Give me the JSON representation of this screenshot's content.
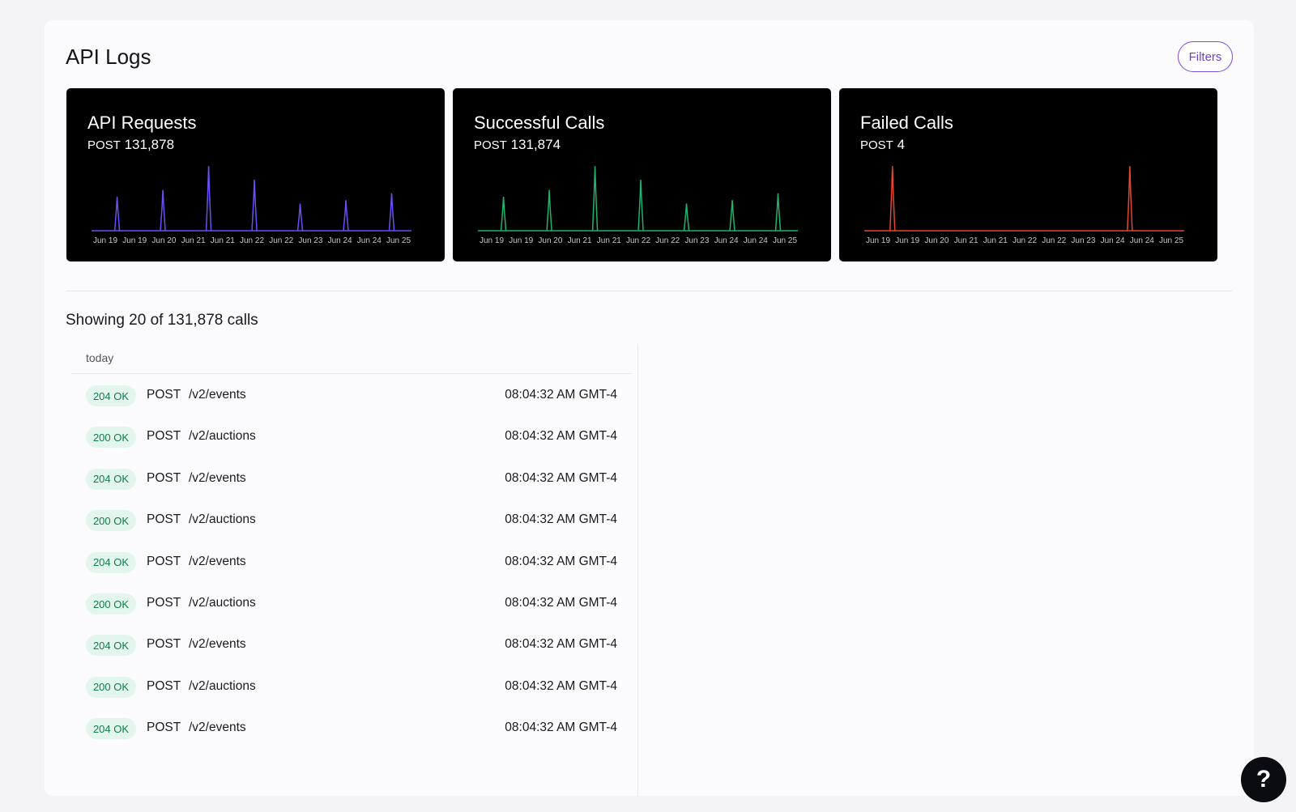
{
  "header": {
    "title": "API Logs",
    "filters_label": "Filters"
  },
  "cards": [
    {
      "title": "API Requests",
      "method": "POST",
      "count": "131,878",
      "color": "#6b4ef5",
      "x_labels": [
        "Jun 19",
        "Jun 19",
        "Jun 20",
        "Jun 21",
        "Jun 21",
        "Jun 22",
        "Jun 22",
        "Jun 23",
        "Jun 24",
        "Jun 24",
        "Jun 25"
      ],
      "spikes": [
        0.5,
        0.6,
        0.95,
        0.75,
        0.4,
        0.45,
        0.55
      ]
    },
    {
      "title": "Successful Calls",
      "method": "POST",
      "count": "131,874",
      "color": "#1fb36b",
      "x_labels": [
        "Jun 19",
        "Jun 19",
        "Jun 20",
        "Jun 21",
        "Jun 21",
        "Jun 22",
        "Jun 22",
        "Jun 23",
        "Jun 24",
        "Jun 24",
        "Jun 25"
      ],
      "spikes": [
        0.5,
        0.6,
        0.95,
        0.75,
        0.4,
        0.45,
        0.55
      ]
    },
    {
      "title": "Failed Calls",
      "method": "POST",
      "count": "4",
      "color": "#e4472e",
      "x_labels": [
        "Jun 19",
        "Jun 19",
        "Jun 20",
        "Jun 21",
        "Jun 21",
        "Jun 22",
        "Jun 22",
        "Jun 23",
        "Jun 24",
        "Jun 24",
        "Jun 25"
      ],
      "spikes": [
        0.95,
        0.95
      ]
    }
  ],
  "summary": {
    "showing_text": "Showing 20 of 131,878 calls"
  },
  "log_list": {
    "day_label": "today",
    "rows": [
      {
        "status": "204 OK",
        "method": "POST",
        "path": "/v2/events",
        "time": "08:04:32 AM GMT-4"
      },
      {
        "status": "200 OK",
        "method": "POST",
        "path": "/v2/auctions",
        "time": "08:04:32 AM GMT-4"
      },
      {
        "status": "204 OK",
        "method": "POST",
        "path": "/v2/events",
        "time": "08:04:32 AM GMT-4"
      },
      {
        "status": "200 OK",
        "method": "POST",
        "path": "/v2/auctions",
        "time": "08:04:32 AM GMT-4"
      },
      {
        "status": "204 OK",
        "method": "POST",
        "path": "/v2/events",
        "time": "08:04:32 AM GMT-4"
      },
      {
        "status": "200 OK",
        "method": "POST",
        "path": "/v2/auctions",
        "time": "08:04:32 AM GMT-4"
      },
      {
        "status": "204 OK",
        "method": "POST",
        "path": "/v2/events",
        "time": "08:04:32 AM GMT-4"
      },
      {
        "status": "200 OK",
        "method": "POST",
        "path": "/v2/auctions",
        "time": "08:04:32 AM GMT-4"
      },
      {
        "status": "204 OK",
        "method": "POST",
        "path": "/v2/events",
        "time": "08:04:32 AM GMT-4"
      }
    ]
  },
  "help": {
    "label": "?"
  }
}
